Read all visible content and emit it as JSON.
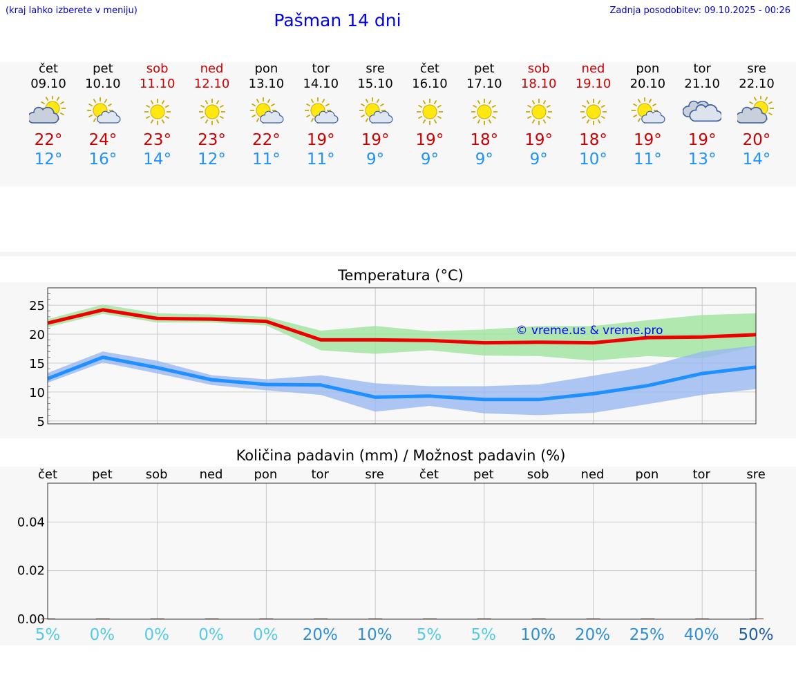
{
  "header": {
    "hint": "(kraj lahko izberete v meniju)",
    "title": "Pašman 14 dni",
    "updated": "Zadnja posodobitev: 09.10.2025 - 00:26"
  },
  "days": [
    {
      "weekday": "čet",
      "date": "09.10",
      "icon": "partly-cloudy-icon",
      "tmax": "22°",
      "tmin": "12°",
      "weekend": false
    },
    {
      "weekday": "pet",
      "date": "10.10",
      "icon": "sun-small-cloud-icon",
      "tmax": "24°",
      "tmin": "16°",
      "weekend": false
    },
    {
      "weekday": "sob",
      "date": "11.10",
      "icon": "sunny-icon",
      "tmax": "23°",
      "tmin": "14°",
      "weekend": true
    },
    {
      "weekday": "ned",
      "date": "12.10",
      "icon": "sunny-icon",
      "tmax": "23°",
      "tmin": "12°",
      "weekend": true
    },
    {
      "weekday": "pon",
      "date": "13.10",
      "icon": "sun-small-cloud-icon",
      "tmax": "22°",
      "tmin": "11°",
      "weekend": false
    },
    {
      "weekday": "tor",
      "date": "14.10",
      "icon": "sun-small-cloud-icon",
      "tmax": "19°",
      "tmin": "11°",
      "weekend": false
    },
    {
      "weekday": "sre",
      "date": "15.10",
      "icon": "sun-small-cloud-icon",
      "tmax": "19°",
      "tmin": "9°",
      "weekend": false
    },
    {
      "weekday": "čet",
      "date": "16.10",
      "icon": "sunny-icon",
      "tmax": "19°",
      "tmin": "9°",
      "weekend": false
    },
    {
      "weekday": "pet",
      "date": "17.10",
      "icon": "sunny-icon",
      "tmax": "18°",
      "tmin": "9°",
      "weekend": false
    },
    {
      "weekday": "sob",
      "date": "18.10",
      "icon": "sunny-icon",
      "tmax": "19°",
      "tmin": "9°",
      "weekend": true
    },
    {
      "weekday": "ned",
      "date": "19.10",
      "icon": "sunny-icon",
      "tmax": "18°",
      "tmin": "10°",
      "weekend": true
    },
    {
      "weekday": "pon",
      "date": "20.10",
      "icon": "sun-small-cloud-icon",
      "tmax": "19°",
      "tmin": "11°",
      "weekend": false
    },
    {
      "weekday": "tor",
      "date": "21.10",
      "icon": "cloudy-icon",
      "tmax": "19°",
      "tmin": "13°",
      "weekend": false
    },
    {
      "weekday": "sre",
      "date": "22.10",
      "icon": "partly-cloudy-icon",
      "tmax": "20°",
      "tmin": "14°",
      "weekend": false
    }
  ],
  "colors": {
    "max_line": "#ee0000",
    "max_band": "#9ee39e",
    "min_line": "#1e90ff",
    "min_band": "#9ab8f0",
    "weekend": "#cc0000",
    "grid": "#cccccc",
    "watermark": "#0000ee"
  },
  "chart_data": [
    {
      "type": "line",
      "title": "Temperatura (°C)",
      "watermark": "© vreme.us & vreme.pro",
      "ylim": [
        4.5,
        28
      ],
      "yticks": [
        5,
        10,
        15,
        20,
        25
      ],
      "series": [
        {
          "name": "max",
          "values": [
            21.9,
            24.2,
            22.7,
            22.6,
            22.2,
            19.0,
            19.0,
            18.9,
            18.5,
            18.6,
            18.5,
            19.4,
            19.5,
            19.9
          ],
          "band_low": [
            21.2,
            23.5,
            22.0,
            22.0,
            21.5,
            17.2,
            16.6,
            17.2,
            16.3,
            16.2,
            15.4,
            16.2,
            15.8,
            17.9
          ],
          "band_high": [
            22.6,
            25.1,
            23.6,
            23.4,
            23.0,
            20.6,
            21.4,
            20.5,
            20.8,
            21.4,
            21.4,
            22.4,
            23.3,
            23.6
          ]
        },
        {
          "name": "min",
          "values": [
            12.3,
            16.0,
            14.2,
            12.1,
            11.3,
            11.2,
            9.1,
            9.3,
            8.7,
            8.7,
            9.7,
            11.1,
            13.2,
            14.3
          ],
          "band_low": [
            11.6,
            15.1,
            13.2,
            11.2,
            10.3,
            9.5,
            6.6,
            7.6,
            6.3,
            6.0,
            6.4,
            7.9,
            9.5,
            10.5
          ],
          "band_high": [
            13.3,
            17.0,
            15.4,
            12.9,
            12.2,
            12.9,
            11.5,
            11.0,
            11.0,
            11.3,
            12.8,
            14.4,
            17.0,
            18.0
          ]
        }
      ]
    },
    {
      "type": "bar",
      "title": "Količina padavin (mm) / Možnost padavin (%)",
      "categories": [
        "čet",
        "pet",
        "sob",
        "ned",
        "pon",
        "tor",
        "sre",
        "čet",
        "pet",
        "sob",
        "ned",
        "pon",
        "tor",
        "sre"
      ],
      "values_mm": [
        0,
        0,
        0,
        0,
        0,
        0,
        0,
        0,
        0,
        0,
        0,
        0,
        0,
        0
      ],
      "ylim": [
        0,
        0.056
      ],
      "yticks": [
        "0.00",
        "0.02",
        "0.04"
      ],
      "ytick_values": [
        0,
        0.02,
        0.04
      ],
      "probability": [
        "5%",
        "0%",
        "0%",
        "0%",
        "0%",
        "20%",
        "10%",
        "5%",
        "5%",
        "10%",
        "20%",
        "25%",
        "40%",
        "50%"
      ],
      "probability_values": [
        5,
        0,
        0,
        0,
        0,
        20,
        10,
        5,
        5,
        10,
        20,
        25,
        40,
        50
      ]
    }
  ]
}
